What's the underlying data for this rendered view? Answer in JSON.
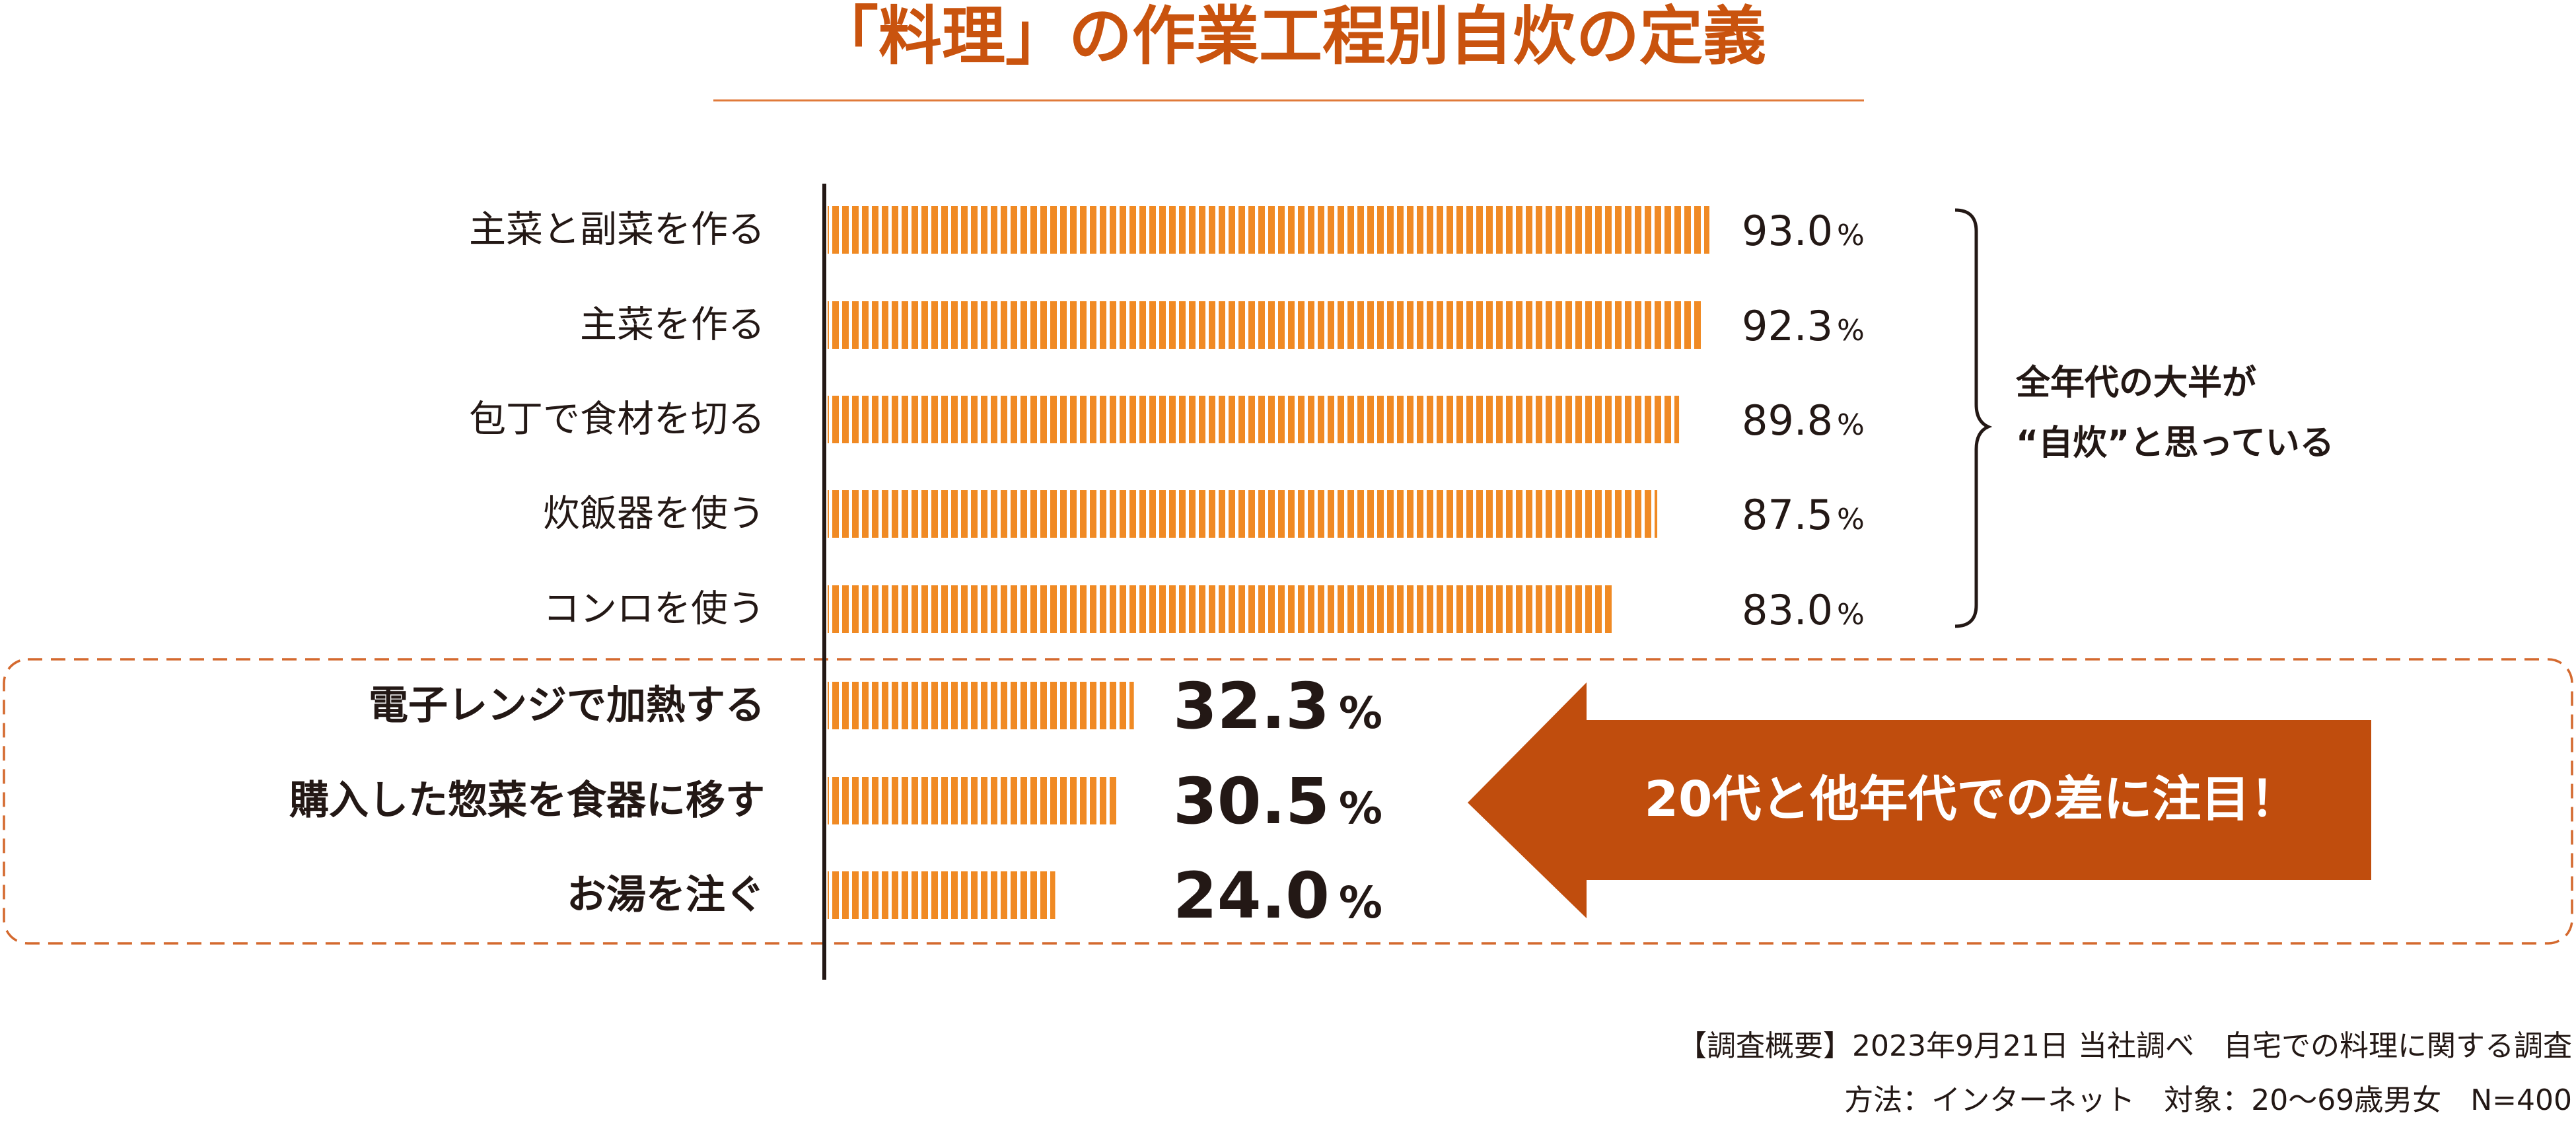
{
  "chart_data": {
    "type": "bar",
    "orientation": "horizontal",
    "title": "「料理」の作業工程別自炊の定義",
    "xlim": [
      0,
      100
    ],
    "unit": "%",
    "categories": [
      "主菜と副菜を作る",
      "主菜を作る",
      "包丁で食材を切る",
      "炊飯器を使う",
      "コンロを使う",
      "電子レンジで加熱する",
      "購入した惣菜を食器に移す",
      "お湯を注ぐ"
    ],
    "values": [
      93.0,
      92.3,
      89.8,
      87.5,
      83.0,
      32.3,
      30.5,
      24.0
    ],
    "value_labels": [
      "93.0",
      "92.3",
      "89.8",
      "87.5",
      "83.0",
      "32.3",
      "30.5",
      "24.0"
    ],
    "highlighted": [
      false,
      false,
      false,
      false,
      false,
      true,
      true,
      true
    ],
    "bracket_note": [
      "全年代の大半が",
      "“自炊”と思っている"
    ],
    "callout": "20代と他年代での差に注目！",
    "footnotes": [
      "【調査概要】2023年9月21日 当社調べ　自宅での料理に関する調査",
      "方法：インターネット　対象：20～69歳男女　N=400"
    ],
    "colors": {
      "bar": "#f08a24",
      "stripe": "#ffffff",
      "title": "#c9530e",
      "title_rule": "#e07a3a",
      "callout": "#c04d0d",
      "dashed_box": "#d4692e",
      "axis": "#231815",
      "text": "#231815"
    }
  }
}
